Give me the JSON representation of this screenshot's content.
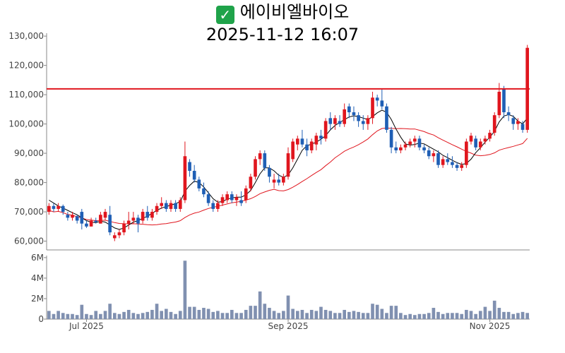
{
  "header": {
    "status_icon": "check-mark-icon",
    "stock_name": "에이비엘바이오",
    "timestamp": "2025-11-12 16:07"
  },
  "colors": {
    "up": "#e0161e",
    "down": "#1f5fb5",
    "ma_short": "#000000",
    "ma_long": "#e0161e",
    "resistance": "#e0161e",
    "volume": "#8090b0",
    "axis": "#888888"
  },
  "chart_data": [
    {
      "type": "candlestick",
      "ylim": [
        57000,
        131000
      ],
      "y_ticks": [
        60000,
        70000,
        80000,
        90000,
        100000,
        110000,
        120000,
        130000
      ],
      "y_tick_labels": [
        "60,000",
        "70,000",
        "80,000",
        "90,000",
        "100,000",
        "110,000",
        "120,000",
        "130,000"
      ],
      "x_ticks": [
        {
          "index": 8,
          "label": "Jul 2025"
        },
        {
          "index": 51,
          "label": "Sep 2025"
        },
        {
          "index": 94,
          "label": "Nov 2025"
        }
      ],
      "horizontal_line": 112000,
      "series": [
        {
          "kind": "ohlc",
          "values": [
            [
              70000,
              73000,
              69000,
              72000
            ],
            [
              72000,
              73000,
              70000,
              71000
            ],
            [
              71000,
              73000,
              70000,
              72000
            ],
            [
              72000,
              72500,
              69000,
              70000
            ],
            [
              69000,
              70000,
              67000,
              68000
            ],
            [
              68000,
              70000,
              67000,
              69000
            ],
            [
              68500,
              69000,
              66000,
              67000
            ],
            [
              70000,
              71000,
              64000,
              66000
            ],
            [
              66000,
              67000,
              64500,
              65000
            ],
            [
              65000,
              68000,
              65000,
              67000
            ],
            [
              67000,
              68000,
              66000,
              66500
            ],
            [
              66000,
              70000,
              66000,
              69000
            ],
            [
              68000,
              71000,
              67000,
              70000
            ],
            [
              69000,
              72000,
              62000,
              63000
            ],
            [
              61000,
              63000,
              60000,
              62000
            ],
            [
              62000,
              64000,
              61000,
              63000
            ],
            [
              63000,
              67000,
              62000,
              66000
            ],
            [
              66000,
              70000,
              64000,
              67000
            ],
            [
              67000,
              70000,
              66000,
              68000
            ],
            [
              68000,
              69000,
              63000,
              66000
            ],
            [
              67000,
              71000,
              66000,
              70000
            ],
            [
              70000,
              72000,
              67000,
              68000
            ],
            [
              68000,
              71000,
              67000,
              70000
            ],
            [
              70000,
              73000,
              69000,
              72000
            ],
            [
              72000,
              75000,
              71000,
              73000
            ],
            [
              73000,
              74000,
              70000,
              71000
            ],
            [
              71000,
              74000,
              70000,
              73000
            ],
            [
              73000,
              74000,
              70000,
              71000
            ],
            [
              71000,
              75000,
              70000,
              74000
            ],
            [
              74000,
              94000,
              73000,
              89000
            ],
            [
              87000,
              88000,
              82000,
              84000
            ],
            [
              84000,
              86000,
              80000,
              81000
            ],
            [
              81000,
              82000,
              77000,
              78000
            ],
            [
              78000,
              80000,
              75000,
              76000
            ],
            [
              76000,
              77000,
              72000,
              73000
            ],
            [
              73000,
              74000,
              70000,
              71000
            ],
            [
              71000,
              74000,
              70000,
              73000
            ],
            [
              73000,
              76000,
              72000,
              75000
            ],
            [
              74000,
              77000,
              73000,
              76000
            ],
            [
              76000,
              77000,
              73000,
              74000
            ],
            [
              74000,
              76000,
              72000,
              75000
            ],
            [
              74000,
              77000,
              72000,
              73000
            ],
            [
              74000,
              79000,
              73000,
              78000
            ],
            [
              78000,
              83000,
              77000,
              82000
            ],
            [
              82000,
              89000,
              81000,
              88000
            ],
            [
              88000,
              91000,
              86000,
              90000
            ],
            [
              90000,
              91000,
              84000,
              85000
            ],
            [
              85000,
              86000,
              80000,
              82000
            ],
            [
              80000,
              83000,
              78000,
              81000
            ],
            [
              81000,
              83000,
              79000,
              80000
            ],
            [
              80000,
              83000,
              79000,
              82000
            ],
            [
              82000,
              92000,
              81000,
              90000
            ],
            [
              88000,
              95000,
              87000,
              94000
            ],
            [
              93000,
              96000,
              91000,
              95000
            ],
            [
              95000,
              98000,
              92000,
              93000
            ],
            [
              93000,
              95000,
              89000,
              91000
            ],
            [
              91000,
              95000,
              90000,
              94000
            ],
            [
              93000,
              97000,
              91000,
              96000
            ],
            [
              96000,
              98000,
              93000,
              95000
            ],
            [
              95000,
              102000,
              94000,
              101000
            ],
            [
              102000,
              104000,
              98000,
              100000
            ],
            [
              100000,
              103000,
              98000,
              102000
            ],
            [
              101000,
              103000,
              99000,
              100000
            ],
            [
              100000,
              107000,
              99000,
              105000
            ],
            [
              106000,
              107000,
              102000,
              104000
            ],
            [
              104000,
              106000,
              101000,
              103000
            ],
            [
              103000,
              104000,
              99000,
              101000
            ],
            [
              101000,
              103000,
              98000,
              100000
            ],
            [
              100000,
              103000,
              98000,
              102000
            ],
            [
              102000,
              111000,
              100000,
              109000
            ],
            [
              109000,
              110000,
              106000,
              108000
            ],
            [
              108000,
              112000,
              105000,
              106000
            ],
            [
              106000,
              107000,
              97000,
              98000
            ],
            [
              98000,
              99000,
              90000,
              92000
            ],
            [
              92000,
              94000,
              90000,
              91000
            ],
            [
              91000,
              93000,
              90000,
              92000
            ],
            [
              92000,
              94000,
              91000,
              93000
            ],
            [
              93000,
              95000,
              92000,
              94000
            ],
            [
              94000,
              96000,
              92000,
              95000
            ],
            [
              95000,
              96000,
              91000,
              92000
            ],
            [
              92000,
              93000,
              90000,
              91000
            ],
            [
              91000,
              92000,
              88000,
              89000
            ],
            [
              89000,
              91000,
              87000,
              90000
            ],
            [
              90000,
              91000,
              85000,
              86000
            ],
            [
              86000,
              89000,
              85000,
              88000
            ],
            [
              88000,
              90000,
              86000,
              87000
            ],
            [
              87000,
              89000,
              85000,
              86000
            ],
            [
              86000,
              87000,
              84000,
              85000
            ],
            [
              85000,
              87000,
              84000,
              86000
            ],
            [
              86000,
              95000,
              85000,
              94000
            ],
            [
              94000,
              97000,
              93000,
              96000
            ],
            [
              95000,
              96000,
              91000,
              92000
            ],
            [
              92000,
              95000,
              91000,
              94000
            ],
            [
              94000,
              96000,
              93000,
              95000
            ],
            [
              95000,
              98000,
              94000,
              97000
            ],
            [
              97000,
              104000,
              96000,
              103000
            ],
            [
              103000,
              114000,
              102000,
              111000
            ],
            [
              112000,
              113000,
              102000,
              104000
            ],
            [
              104000,
              106000,
              101000,
              103000
            ],
            [
              102000,
              103000,
              98000,
              100000
            ],
            [
              100000,
              102000,
              98000,
              101000
            ],
            [
              100000,
              101000,
              97000,
              98000
            ],
            [
              98000,
              127000,
              97000,
              126000
            ]
          ]
        },
        {
          "kind": "ma_short",
          "values": [
            74000,
            73000,
            72000,
            71300,
            70500,
            69700,
            69000,
            68000,
            67000,
            66500,
            66300,
            66800,
            66500,
            65500,
            64500,
            64000,
            64500,
            65500,
            66500,
            67000,
            67800,
            68500,
            69500,
            70500,
            71300,
            71800,
            72300,
            72800,
            73500,
            77000,
            79000,
            80500,
            80000,
            78500,
            76500,
            74500,
            73300,
            73500,
            74300,
            74800,
            75000,
            75000,
            75800,
            77300,
            80000,
            83000,
            85000,
            85000,
            84000,
            82500,
            81800,
            82600,
            85000,
            88000,
            91000,
            92600,
            93100,
            93800,
            94800,
            96000,
            98000,
            99500,
            100500,
            101500,
            102400,
            102800,
            102500,
            102000,
            101500,
            102500,
            103800,
            104700,
            104000,
            101500,
            98300,
            95500,
            93200,
            92800,
            93000,
            93500,
            93200,
            92300,
            91400,
            90500,
            89300,
            88500,
            87600,
            86800,
            86200,
            86500,
            88000,
            90200,
            91900,
            93800,
            95500,
            97500,
            100700,
            102700,
            103200,
            102600,
            101000,
            100000,
            102000
          ]
        },
        {
          "kind": "ma_long",
          "values": [
            null,
            null,
            null,
            null,
            null,
            null,
            null,
            null,
            null,
            null,
            null,
            null,
            null,
            null,
            null,
            null,
            null,
            null,
            null,
            null,
            null,
            null,
            null,
            null,
            null,
            null,
            null,
            null,
            null,
            null,
            null,
            null,
            null,
            null,
            null,
            null,
            null,
            null,
            null,
            null,
            null,
            null,
            null,
            null,
            null,
            null,
            null,
            null,
            null,
            null,
            null,
            null,
            null,
            null,
            null,
            null,
            null,
            null,
            null,
            null,
            null,
            null,
            null,
            null,
            null,
            null,
            null,
            null,
            null,
            null,
            null,
            null,
            null,
            null,
            null,
            null,
            null,
            null,
            null,
            null,
            null,
            null,
            null,
            null,
            null,
            null,
            null,
            null,
            null,
            null,
            null,
            null,
            null,
            null,
            null,
            null,
            null,
            null,
            null,
            null,
            null,
            null,
            null
          ]
        },
        {
          "kind": "volume",
          "values": [
            0.8,
            0.5,
            0.8,
            0.6,
            0.5,
            0.5,
            0.4,
            1.4,
            0.5,
            0.4,
            0.8,
            0.5,
            0.8,
            1.5,
            0.6,
            0.5,
            0.7,
            0.9,
            0.6,
            0.5,
            0.6,
            0.7,
            0.9,
            1.5,
            0.8,
            1.0,
            0.7,
            0.5,
            0.8,
            5.7,
            1.2,
            1.2,
            0.9,
            1.1,
            1.0,
            0.7,
            0.8,
            0.6,
            0.6,
            0.9,
            0.6,
            0.6,
            0.9,
            1.3,
            1.3,
            2.7,
            1.5,
            1.1,
            0.8,
            0.6,
            0.8,
            2.3,
            1.0,
            0.8,
            0.9,
            0.6,
            0.9,
            0.8,
            1.2,
            0.9,
            0.8,
            0.6,
            0.6,
            0.9,
            0.7,
            0.8,
            0.7,
            0.6,
            0.6,
            1.5,
            1.4,
            1.0,
            0.6,
            1.3,
            1.3,
            0.6,
            0.4,
            0.5,
            0.4,
            0.5,
            0.5,
            0.6,
            1.1,
            0.7,
            0.5,
            0.6,
            0.6,
            0.6,
            0.5,
            0.9,
            0.8,
            0.5,
            0.8,
            1.2,
            0.8,
            1.8,
            1.1,
            0.7,
            0.7,
            0.5,
            0.6,
            0.7,
            0.6
          ]
        }
      ],
      "volume_ylim": [
        0,
        6.2
      ],
      "volume_ticks": [
        0,
        2,
        4,
        6
      ],
      "volume_tick_labels": [
        "0",
        "2M",
        "4M",
        "6M"
      ]
    }
  ]
}
